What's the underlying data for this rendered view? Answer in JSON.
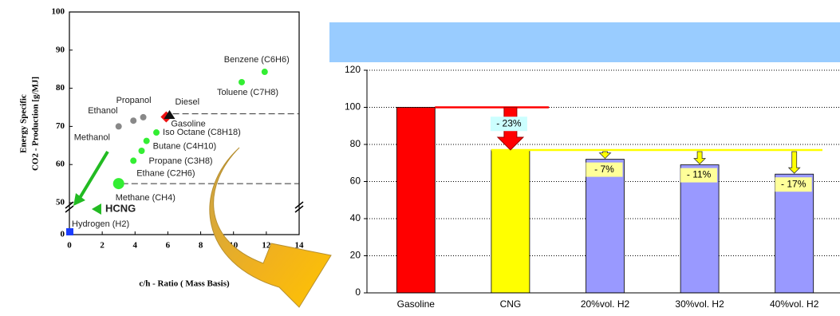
{
  "chart_data": [
    {
      "type": "scatter",
      "xlabel": "c/h - Ratio ( Mass Basis)",
      "ylabel": [
        "Energy Specific",
        "CO2 - Production [g/MJ]"
      ],
      "labels": [
        "Hydrogen (H2)",
        "HCNG",
        "Methane (CH4)",
        "Ethane (C2H6)",
        "Propane (C3H8)",
        "Butane (C4H10)",
        "Iso Octane (C8H18)",
        "Methanol",
        "Ethanol",
        "Propanol",
        "Gasoline",
        "Diesel",
        "Toluene (C7H8)",
        "Benzene (C6H6)"
      ],
      "x": [
        0,
        1.7,
        3,
        3.9,
        4.4,
        4.7,
        5.3,
        3,
        3.9,
        4.5,
        5.9,
        6.1,
        10.5,
        11.9
      ],
      "values": [
        0,
        40,
        55,
        61,
        63.6,
        66.2,
        68.4,
        70,
        71.5,
        72.4,
        72.5,
        73,
        81.6,
        84.3
      ],
      "colors": [
        "#1a3cff",
        "#22bb22",
        "#33ee33",
        "#33ee33",
        "#33ee33",
        "#33ee33",
        "#33ee33",
        "#888888",
        "#888888",
        "#888888",
        "#ee1111",
        "#111111",
        "#33ee33",
        "#33ee33"
      ],
      "markers": [
        "square",
        "triangle",
        "circle",
        "circle",
        "circle",
        "circle",
        "circle",
        "circle",
        "circle",
        "circle",
        "diamond",
        "triangle",
        "circle",
        "circle"
      ],
      "reference_lines": [
        {
          "y": 73.3,
          "from_x": 6.3
        },
        {
          "y": 55,
          "from_x": 3.2
        }
      ],
      "xlim": [
        0,
        14
      ],
      "xticks": [
        0,
        2,
        4,
        6,
        8,
        10,
        12,
        14
      ],
      "ylim": [
        0,
        100
      ],
      "yticks": [
        0,
        50,
        60,
        70,
        80,
        90,
        100
      ]
    },
    {
      "type": "bar",
      "categories": [
        "Gasoline",
        "CNG",
        "20%vol. H2",
        "30%vol. H2",
        "40%vol. H2"
      ],
      "values": [
        100,
        77,
        72,
        69,
        64
      ],
      "colors": [
        "#ff0000",
        "#ffff00",
        "#9999ff",
        "#9999ff",
        "#9999ff"
      ],
      "annotations": [
        {
          "category": 1,
          "text": "- 23%"
        },
        {
          "category": 2,
          "text": "- 7%"
        },
        {
          "category": 3,
          "text": "- 11%"
        },
        {
          "category": 4,
          "text": "- 17%"
        }
      ],
      "reference_lines": [
        {
          "y": 100,
          "color": "#ff0000"
        },
        {
          "y": 77,
          "color": "#ffff00"
        }
      ],
      "ylim": [
        0,
        120
      ],
      "yticks": [
        0,
        20,
        40,
        60,
        80,
        100,
        120
      ],
      "grid": true
    }
  ]
}
